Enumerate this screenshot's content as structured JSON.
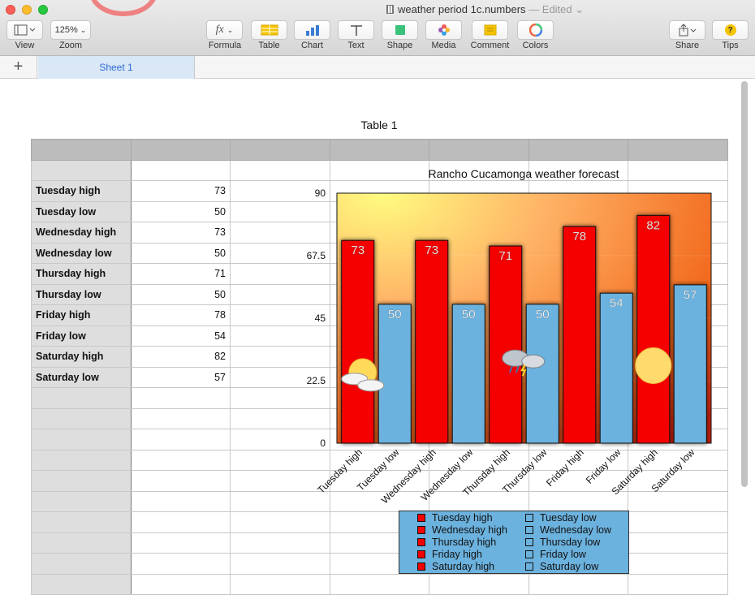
{
  "window": {
    "doc_name": "weather period 1c.numbers",
    "edited_label": "— Edited ⌄"
  },
  "toolbar": {
    "view_label": "View",
    "zoom_value": "125%",
    "zoom_label": "Zoom",
    "formula_icon": "fx",
    "formula_label": "Formula",
    "table_label": "Table",
    "chart_label": "Chart",
    "text_label": "Text",
    "shape_label": "Shape",
    "media_label": "Media",
    "comment_label": "Comment",
    "colors_label": "Colors",
    "share_label": "Share",
    "tips_label": "Tips",
    "tips_icon": "?"
  },
  "sheets": {
    "add_icon": "+",
    "active_tab": "Sheet 1"
  },
  "table": {
    "title": "Table 1",
    "rows": [
      {
        "label": "Tuesday high",
        "value": "73"
      },
      {
        "label": "Tuesday low",
        "value": "50"
      },
      {
        "label": "Wednesday high",
        "value": "73"
      },
      {
        "label": "Wednesday low",
        "value": "50"
      },
      {
        "label": "Thursday high",
        "value": "71"
      },
      {
        "label": "Thursday low",
        "value": "50"
      },
      {
        "label": "Friday high",
        "value": "78"
      },
      {
        "label": "Friday low",
        "value": "54"
      },
      {
        "label": "Saturday high",
        "value": "82"
      },
      {
        "label": "Saturday low",
        "value": "57"
      }
    ]
  },
  "chart_data": {
    "type": "bar",
    "title": "Rancho Cucamonga weather forecast",
    "categories": [
      "Tuesday high",
      "Tuesday low",
      "Wednesday high",
      "Wednesday low",
      "Thursday high",
      "Thursday low",
      "Friday high",
      "Friday low",
      "Saturday high",
      "Saturday low"
    ],
    "values": [
      73,
      50,
      73,
      50,
      71,
      50,
      78,
      54,
      82,
      57
    ],
    "colors": [
      "#f40000",
      "#6cb2de",
      "#f40000",
      "#6cb2de",
      "#f40000",
      "#6cb2de",
      "#f40000",
      "#6cb2de",
      "#f40000",
      "#6cb2de"
    ],
    "ylim": [
      0,
      90
    ],
    "yticks": [
      "0",
      "22.5",
      "45",
      "67.5",
      "90"
    ],
    "legend_placement": "bottom",
    "background": "sunset gradient",
    "weather_icons": [
      {
        "name": "partly-cloudy-icon",
        "category": "Tuesday high"
      },
      {
        "name": "thunderstorm-icon",
        "category": "Thursday high"
      },
      {
        "name": "sun-icon",
        "category": "Saturday high"
      }
    ]
  },
  "legend": {
    "items": [
      {
        "label": "Tuesday high",
        "color": "#f40000"
      },
      {
        "label": "Wednesday high",
        "color": "#f40000"
      },
      {
        "label": "Thursday high",
        "color": "#f40000"
      },
      {
        "label": "Friday high",
        "color": "#f40000"
      },
      {
        "label": "Saturday high",
        "color": "#f40000"
      },
      {
        "label": "Tuesday low",
        "color": "#6cb2de"
      },
      {
        "label": "Wednesday low",
        "color": "#6cb2de"
      },
      {
        "label": "Thursday low",
        "color": "#6cb2de"
      },
      {
        "label": "Friday low",
        "color": "#6cb2de"
      },
      {
        "label": "Saturday low",
        "color": "#6cb2de"
      }
    ]
  }
}
